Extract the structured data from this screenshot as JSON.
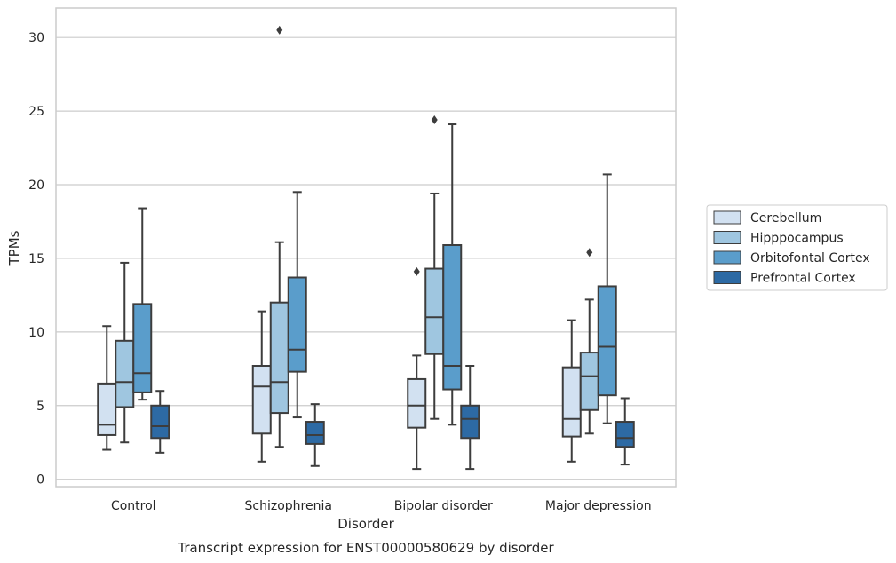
{
  "chart_data": {
    "type": "boxplot",
    "title": "Transcript expression for ENST00000580629 by disorder",
    "xlabel": "Disorder",
    "ylabel": "TPMs",
    "ylim": [
      -0.5,
      32
    ],
    "yticks": [
      0,
      5,
      10,
      15,
      20,
      25,
      30
    ],
    "categories": [
      "Control",
      "Schizophrenia",
      "Bipolar disorder",
      "Major depression"
    ],
    "grid": true,
    "legend_position": "right",
    "series": [
      {
        "name": "Cerebellum",
        "color": "#d2e1f1",
        "boxes": [
          {
            "whisker_low": 2.0,
            "q1": 3.0,
            "median": 3.7,
            "q3": 6.5,
            "whisker_high": 10.4,
            "outliers": []
          },
          {
            "whisker_low": 1.2,
            "q1": 3.1,
            "median": 6.3,
            "q3": 7.7,
            "whisker_high": 11.4,
            "outliers": []
          },
          {
            "whisker_low": 0.7,
            "q1": 3.5,
            "median": 5.0,
            "q3": 6.8,
            "whisker_high": 8.4,
            "outliers": [
              14.1
            ]
          },
          {
            "whisker_low": 1.2,
            "q1": 2.9,
            "median": 4.1,
            "q3": 7.6,
            "whisker_high": 10.8,
            "outliers": []
          }
        ]
      },
      {
        "name": "Hipppocampus",
        "color": "#9fc6e0",
        "boxes": [
          {
            "whisker_low": 2.5,
            "q1": 4.9,
            "median": 6.6,
            "q3": 9.4,
            "whisker_high": 14.7,
            "outliers": []
          },
          {
            "whisker_low": 2.2,
            "q1": 4.5,
            "median": 6.6,
            "q3": 12.0,
            "whisker_high": 16.1,
            "outliers": [
              30.5
            ]
          },
          {
            "whisker_low": 4.1,
            "q1": 8.5,
            "median": 11.0,
            "q3": 14.3,
            "whisker_high": 19.4,
            "outliers": [
              24.4
            ]
          },
          {
            "whisker_low": 3.1,
            "q1": 4.7,
            "median": 7.0,
            "q3": 8.6,
            "whisker_high": 12.2,
            "outliers": [
              15.4
            ]
          }
        ]
      },
      {
        "name": "Orbitofontal Cortex",
        "color": "#5a9dcb",
        "boxes": [
          {
            "whisker_low": 5.4,
            "q1": 5.9,
            "median": 7.2,
            "q3": 11.9,
            "whisker_high": 18.4,
            "outliers": []
          },
          {
            "whisker_low": 4.2,
            "q1": 7.3,
            "median": 8.8,
            "q3": 13.7,
            "whisker_high": 19.5,
            "outliers": []
          },
          {
            "whisker_low": 3.7,
            "q1": 6.1,
            "median": 7.7,
            "q3": 15.9,
            "whisker_high": 24.1,
            "outliers": []
          },
          {
            "whisker_low": 3.8,
            "q1": 5.7,
            "median": 9.0,
            "q3": 13.1,
            "whisker_high": 20.7,
            "outliers": []
          }
        ]
      },
      {
        "name": "Prefrontal Cortex",
        "color": "#2d6aa4",
        "boxes": [
          {
            "whisker_low": 1.8,
            "q1": 2.8,
            "median": 3.6,
            "q3": 5.0,
            "whisker_high": 6.0,
            "outliers": []
          },
          {
            "whisker_low": 0.9,
            "q1": 2.4,
            "median": 3.0,
            "q3": 3.9,
            "whisker_high": 5.1,
            "outliers": []
          },
          {
            "whisker_low": 0.7,
            "q1": 2.8,
            "median": 4.1,
            "q3": 5.0,
            "whisker_high": 7.7,
            "outliers": []
          },
          {
            "whisker_low": 1.0,
            "q1": 2.2,
            "median": 2.8,
            "q3": 3.9,
            "whisker_high": 5.5,
            "outliers": []
          }
        ]
      }
    ]
  }
}
